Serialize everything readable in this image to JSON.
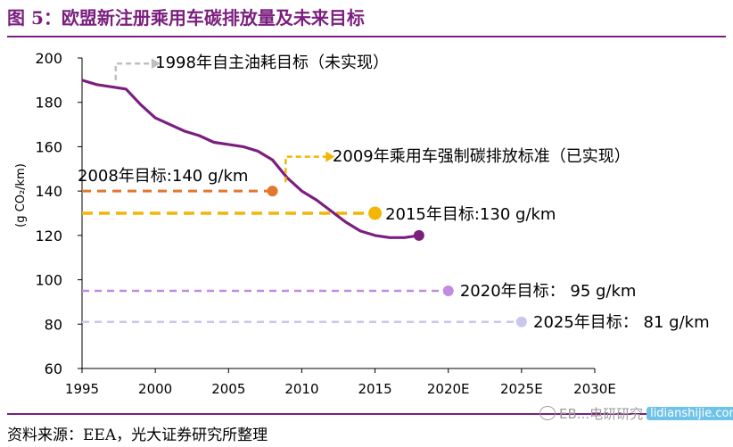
{
  "title": "图 5：欧盟新注册乘用车碳排放量及未来目标",
  "source": "资料来源：EEA，光大证券研究所整理",
  "watermark": {
    "text": "EB...电研研究",
    "site": "lidianshijie.com"
  },
  "colors": {
    "title": "#7b1f7e",
    "emissions_line": "#7b1f7e",
    "target_2008": "#e2772f",
    "target_2015": "#f2b705",
    "target_2020": "#c08be0",
    "target_2025": "#c8c7ec",
    "arrow_gray": "#bfbfbf",
    "arrow_gold": "#f2b705"
  },
  "annotations": {
    "t1998": "1998年自主油耗目标（未实现）",
    "t2009": "2009年乘用车强制碳排放标准（已实现）",
    "t2008": "2008年目标:140 g/km",
    "t2015": "2015年目标:130 g/km",
    "t2020": "2020年目标： 95 g/km",
    "t2025": "2025年目标： 81 g/km"
  },
  "chart_data": {
    "type": "line",
    "title": "图 5：欧盟新注册乘用车碳排放量及未来目标",
    "ylabel": "(g CO₂/km)",
    "xlabel": "",
    "ylim": [
      60,
      200
    ],
    "xlim": [
      1995,
      2030
    ],
    "grid": false,
    "yticks": [
      "60",
      "80",
      "100",
      "120",
      "140",
      "160",
      "180",
      "200"
    ],
    "xticks": [
      {
        "x": 1995,
        "label": "1995"
      },
      {
        "x": 2000,
        "label": "2000"
      },
      {
        "x": 2005,
        "label": "2005"
      },
      {
        "x": 2010,
        "label": "2010"
      },
      {
        "x": 2015,
        "label": "2015"
      },
      {
        "x": 2020,
        "label": "2020E"
      },
      {
        "x": 2025,
        "label": "2025E"
      },
      {
        "x": 2030,
        "label": "2030E"
      }
    ],
    "series": [
      {
        "x": [
          1995,
          1996,
          1997,
          1998,
          1999,
          2000,
          2001,
          2002,
          2003,
          2004,
          2005,
          2006,
          2007,
          2008,
          2009,
          2010,
          2011,
          2012,
          2013,
          2014,
          2015,
          2016,
          2017,
          2018
        ],
        "values": [
          190,
          188,
          187,
          186,
          179,
          173,
          170,
          167,
          165,
          162,
          161,
          160,
          158,
          154,
          146,
          140,
          136,
          131,
          126,
          122,
          120,
          119,
          119,
          120
        ]
      }
    ],
    "targets": [
      {
        "key": "t2008",
        "value": 140,
        "x_end": 2008
      },
      {
        "key": "t2015",
        "value": 130,
        "x_end": 2015
      },
      {
        "key": "t2020",
        "value": 95,
        "x_end": 2020
      },
      {
        "key": "t2025",
        "value": 81,
        "x_end": 2025
      }
    ]
  }
}
